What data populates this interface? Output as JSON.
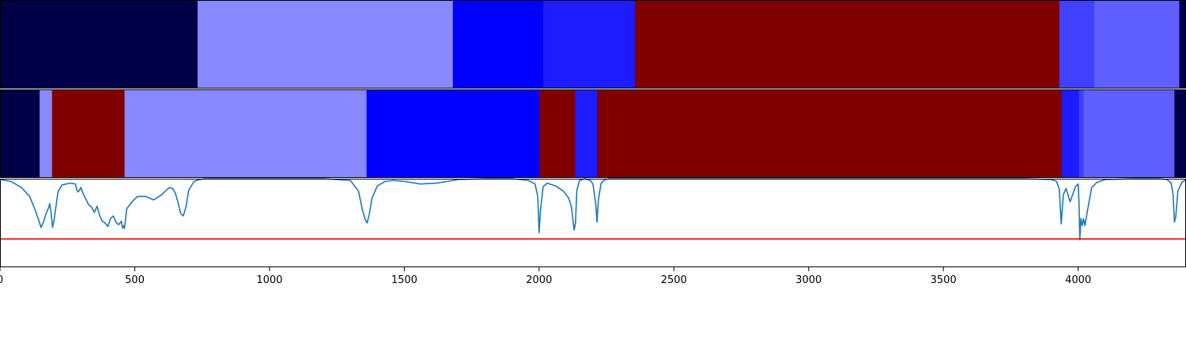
{
  "chart_data": {
    "type": "heatmap",
    "xlim": [
      0,
      4400
    ],
    "x_ticks": [
      "0",
      "500",
      "1000",
      "1500",
      "2000",
      "2500",
      "3000",
      "3500",
      "4000"
    ],
    "x_tick_values": [
      0,
      500,
      1000,
      1500,
      2000,
      2500,
      3000,
      3500,
      4000
    ],
    "colormap": "seismic-blue-to-darkred",
    "segment_rows": [
      {
        "segments": [
          {
            "start": 0,
            "end": 733,
            "color": "#000048"
          },
          {
            "start": 733,
            "end": 1680,
            "color": "#8888ff"
          },
          {
            "start": 1680,
            "end": 2015,
            "color": "#0000ff"
          },
          {
            "start": 2015,
            "end": 2355,
            "color": "#1c1cff"
          },
          {
            "start": 2355,
            "end": 3930,
            "color": "#800000"
          },
          {
            "start": 3930,
            "end": 4060,
            "color": "#4040ff"
          },
          {
            "start": 4060,
            "end": 4375,
            "color": "#5f5fff"
          },
          {
            "start": 4375,
            "end": 4400,
            "color": "#000048"
          }
        ]
      },
      {
        "segments": [
          {
            "start": 0,
            "end": 147,
            "color": "#000048"
          },
          {
            "start": 147,
            "end": 193,
            "color": "#8888ff"
          },
          {
            "start": 193,
            "end": 462,
            "color": "#800000"
          },
          {
            "start": 462,
            "end": 1360,
            "color": "#8888ff"
          },
          {
            "start": 1360,
            "end": 2000,
            "color": "#0000ff"
          },
          {
            "start": 2000,
            "end": 2133,
            "color": "#800000"
          },
          {
            "start": 2133,
            "end": 2215,
            "color": "#1c1cff"
          },
          {
            "start": 2215,
            "end": 3940,
            "color": "#800000"
          },
          {
            "start": 3940,
            "end": 4003,
            "color": "#1c1cff"
          },
          {
            "start": 4003,
            "end": 4020,
            "color": "#4040ff"
          },
          {
            "start": 4020,
            "end": 4357,
            "color": "#5f5fff"
          },
          {
            "start": 4357,
            "end": 4400,
            "color": "#000048"
          }
        ]
      }
    ],
    "line_panel": {
      "ylim": [
        0,
        1
      ],
      "threshold": 0.32,
      "threshold_color": "#ff0000",
      "line_color": "#1f77b4",
      "x": [
        0,
        40,
        80,
        110,
        130,
        145,
        152,
        160,
        170,
        180,
        185,
        190,
        195,
        200,
        215,
        230,
        260,
        280,
        285,
        290,
        300,
        310,
        320,
        330,
        340,
        350,
        360,
        370,
        380,
        390,
        400,
        410,
        420,
        430,
        440,
        450,
        455,
        460,
        462,
        470,
        490,
        510,
        540,
        570,
        600,
        620,
        630,
        640,
        650,
        660,
        670,
        680,
        690,
        700,
        720,
        740,
        760,
        800,
        900,
        1000,
        1100,
        1200,
        1300,
        1330,
        1345,
        1355,
        1362,
        1370,
        1380,
        1400,
        1430,
        1460,
        1500,
        1560,
        1620,
        1660,
        1700,
        1800,
        1900,
        1960,
        1985,
        1995,
        2000,
        2005,
        2015,
        2030,
        2060,
        2090,
        2110,
        2120,
        2130,
        2135,
        2140,
        2150,
        2170,
        2190,
        2200,
        2210,
        2215,
        2220,
        2230,
        2245,
        2260,
        2300,
        2400,
        2600,
        2800,
        3000,
        3200,
        3400,
        3600,
        3800,
        3900,
        3920,
        3930,
        3937,
        3945,
        3955,
        3970,
        3990,
        4000,
        4003,
        4006,
        4010,
        4015,
        4020,
        4025,
        4035,
        4050,
        4070,
        4100,
        4200,
        4300,
        4330,
        4345,
        4352,
        4357,
        4362,
        4370,
        4385,
        4400
      ],
      "y": [
        0.99,
        0.97,
        0.9,
        0.8,
        0.65,
        0.52,
        0.45,
        0.5,
        0.6,
        0.67,
        0.72,
        0.6,
        0.45,
        0.52,
        0.85,
        0.93,
        0.95,
        0.94,
        0.87,
        0.85,
        0.9,
        0.82,
        0.76,
        0.7,
        0.68,
        0.62,
        0.69,
        0.58,
        0.52,
        0.5,
        0.46,
        0.55,
        0.58,
        0.51,
        0.48,
        0.52,
        0.44,
        0.47,
        0.44,
        0.66,
        0.74,
        0.8,
        0.8,
        0.76,
        0.82,
        0.88,
        0.9,
        0.89,
        0.84,
        0.74,
        0.61,
        0.58,
        0.68,
        0.87,
        0.97,
        0.99,
        1.0,
        1.0,
        1.0,
        1.0,
        1.0,
        1.0,
        0.98,
        0.86,
        0.64,
        0.54,
        0.5,
        0.6,
        0.78,
        0.92,
        0.97,
        0.98,
        0.97,
        0.94,
        0.95,
        0.97,
        0.99,
        1.0,
        1.0,
        0.98,
        0.94,
        0.8,
        0.39,
        0.64,
        0.91,
        0.95,
        0.92,
        0.86,
        0.78,
        0.68,
        0.42,
        0.5,
        0.87,
        0.98,
        1.0,
        0.98,
        0.94,
        0.72,
        0.51,
        0.76,
        0.95,
        0.99,
        1.0,
        1.0,
        1.0,
        1.0,
        1.0,
        1.0,
        1.0,
        1.0,
        1.0,
        1.0,
        0.99,
        0.97,
        0.88,
        0.49,
        0.82,
        0.89,
        0.74,
        0.91,
        0.94,
        0.73,
        0.31,
        0.55,
        0.47,
        0.55,
        0.47,
        0.65,
        0.9,
        0.96,
        0.99,
        1.0,
        1.0,
        0.99,
        0.95,
        0.82,
        0.51,
        0.57,
        0.86,
        0.96,
        0.99,
        1.0
      ]
    }
  }
}
